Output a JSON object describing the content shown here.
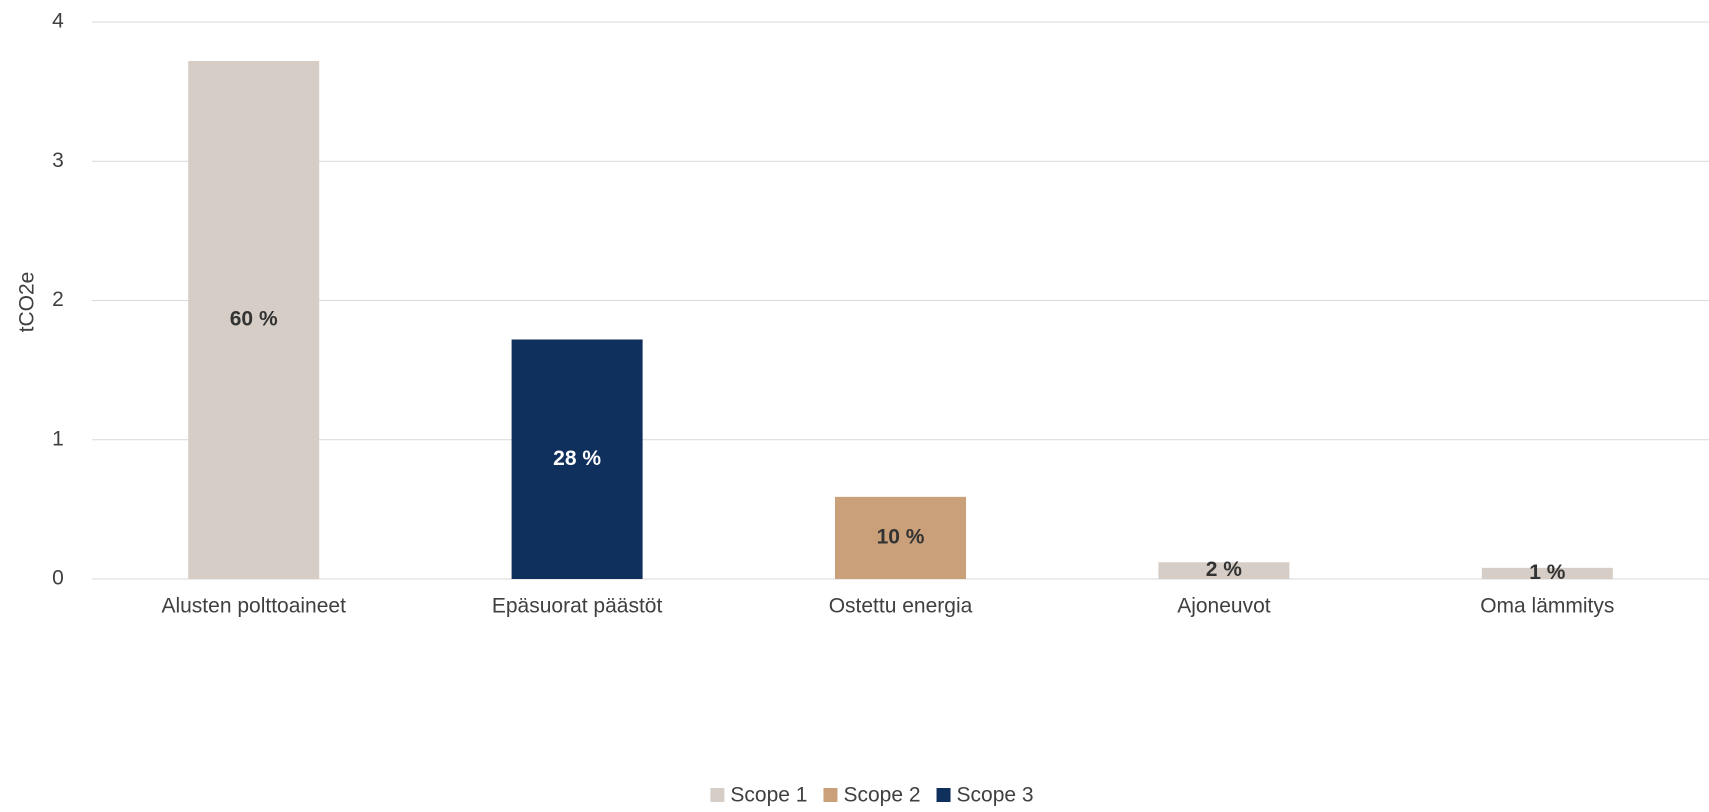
{
  "chart_data": {
    "type": "bar",
    "y_label": "tCO2e",
    "categories": [
      "Alusten polttoaineet",
      "Epäsuorat päästöt",
      "Ostettu energia",
      "Ajoneuvot",
      "Oma lämmitys"
    ],
    "series": [
      {
        "name": "Scope 1",
        "color": "#d6cec6",
        "label_color": "#333333",
        "values": [
          3.72,
          null,
          null,
          0.12,
          0.08
        ],
        "labels": [
          "60 %",
          null,
          null,
          "2 %",
          "1 %"
        ]
      },
      {
        "name": "Scope 2",
        "color": "#c9a07a",
        "label_color": "#333333",
        "values": [
          null,
          null,
          0.59,
          null,
          null
        ],
        "labels": [
          null,
          null,
          "10 %",
          null,
          null
        ]
      },
      {
        "name": "Scope 3",
        "color": "#0f2f5c",
        "label_color": "#ffffff",
        "values": [
          null,
          1.72,
          null,
          null,
          null
        ],
        "labels": [
          null,
          "28 %",
          null,
          null,
          null
        ]
      }
    ],
    "ylim": [
      0,
      4
    ],
    "yticks": [
      0,
      1,
      2,
      3,
      4
    ],
    "grid": true
  }
}
